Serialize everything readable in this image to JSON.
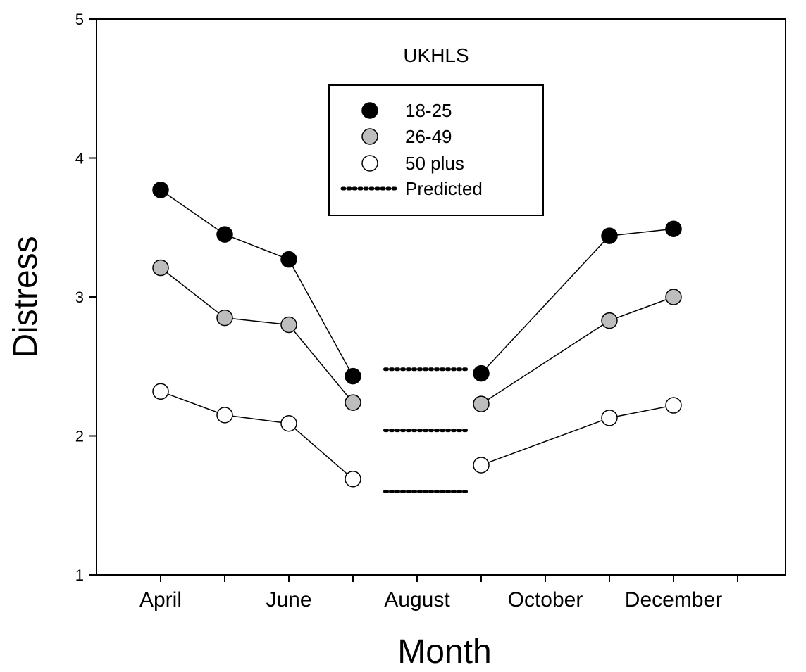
{
  "chart_data": {
    "type": "line",
    "title": "UKHLS",
    "xlabel": "Month",
    "ylabel": "Distress",
    "ylim": [
      1,
      5
    ],
    "yticks": [
      "1",
      "2",
      "3",
      "4",
      "5"
    ],
    "xticks": [
      "April",
      "June",
      "August",
      "October",
      "December"
    ],
    "x_months": [
      4,
      5,
      6,
      7,
      9,
      11,
      12
    ],
    "series": [
      {
        "name": "18-25",
        "fill": "#000000",
        "values": [
          3.77,
          3.45,
          3.27,
          2.43,
          2.45,
          3.44,
          3.49
        ]
      },
      {
        "name": "26-49",
        "fill": "#bdbdbd",
        "values": [
          3.21,
          2.85,
          2.8,
          2.24,
          2.23,
          2.83,
          3.0
        ]
      },
      {
        "name": "50 plus",
        "fill": "#ffffff",
        "values": [
          2.32,
          2.15,
          2.09,
          1.69,
          1.79,
          2.13,
          2.22
        ]
      }
    ],
    "predicted": {
      "name": "Predicted",
      "x_range": [
        7.5,
        8.8
      ],
      "values": [
        2.48,
        2.04,
        1.6
      ]
    },
    "legend": {
      "position": "top-center",
      "entries": [
        "18-25",
        "26-49",
        "50 plus",
        "Predicted"
      ]
    },
    "grid": false
  }
}
